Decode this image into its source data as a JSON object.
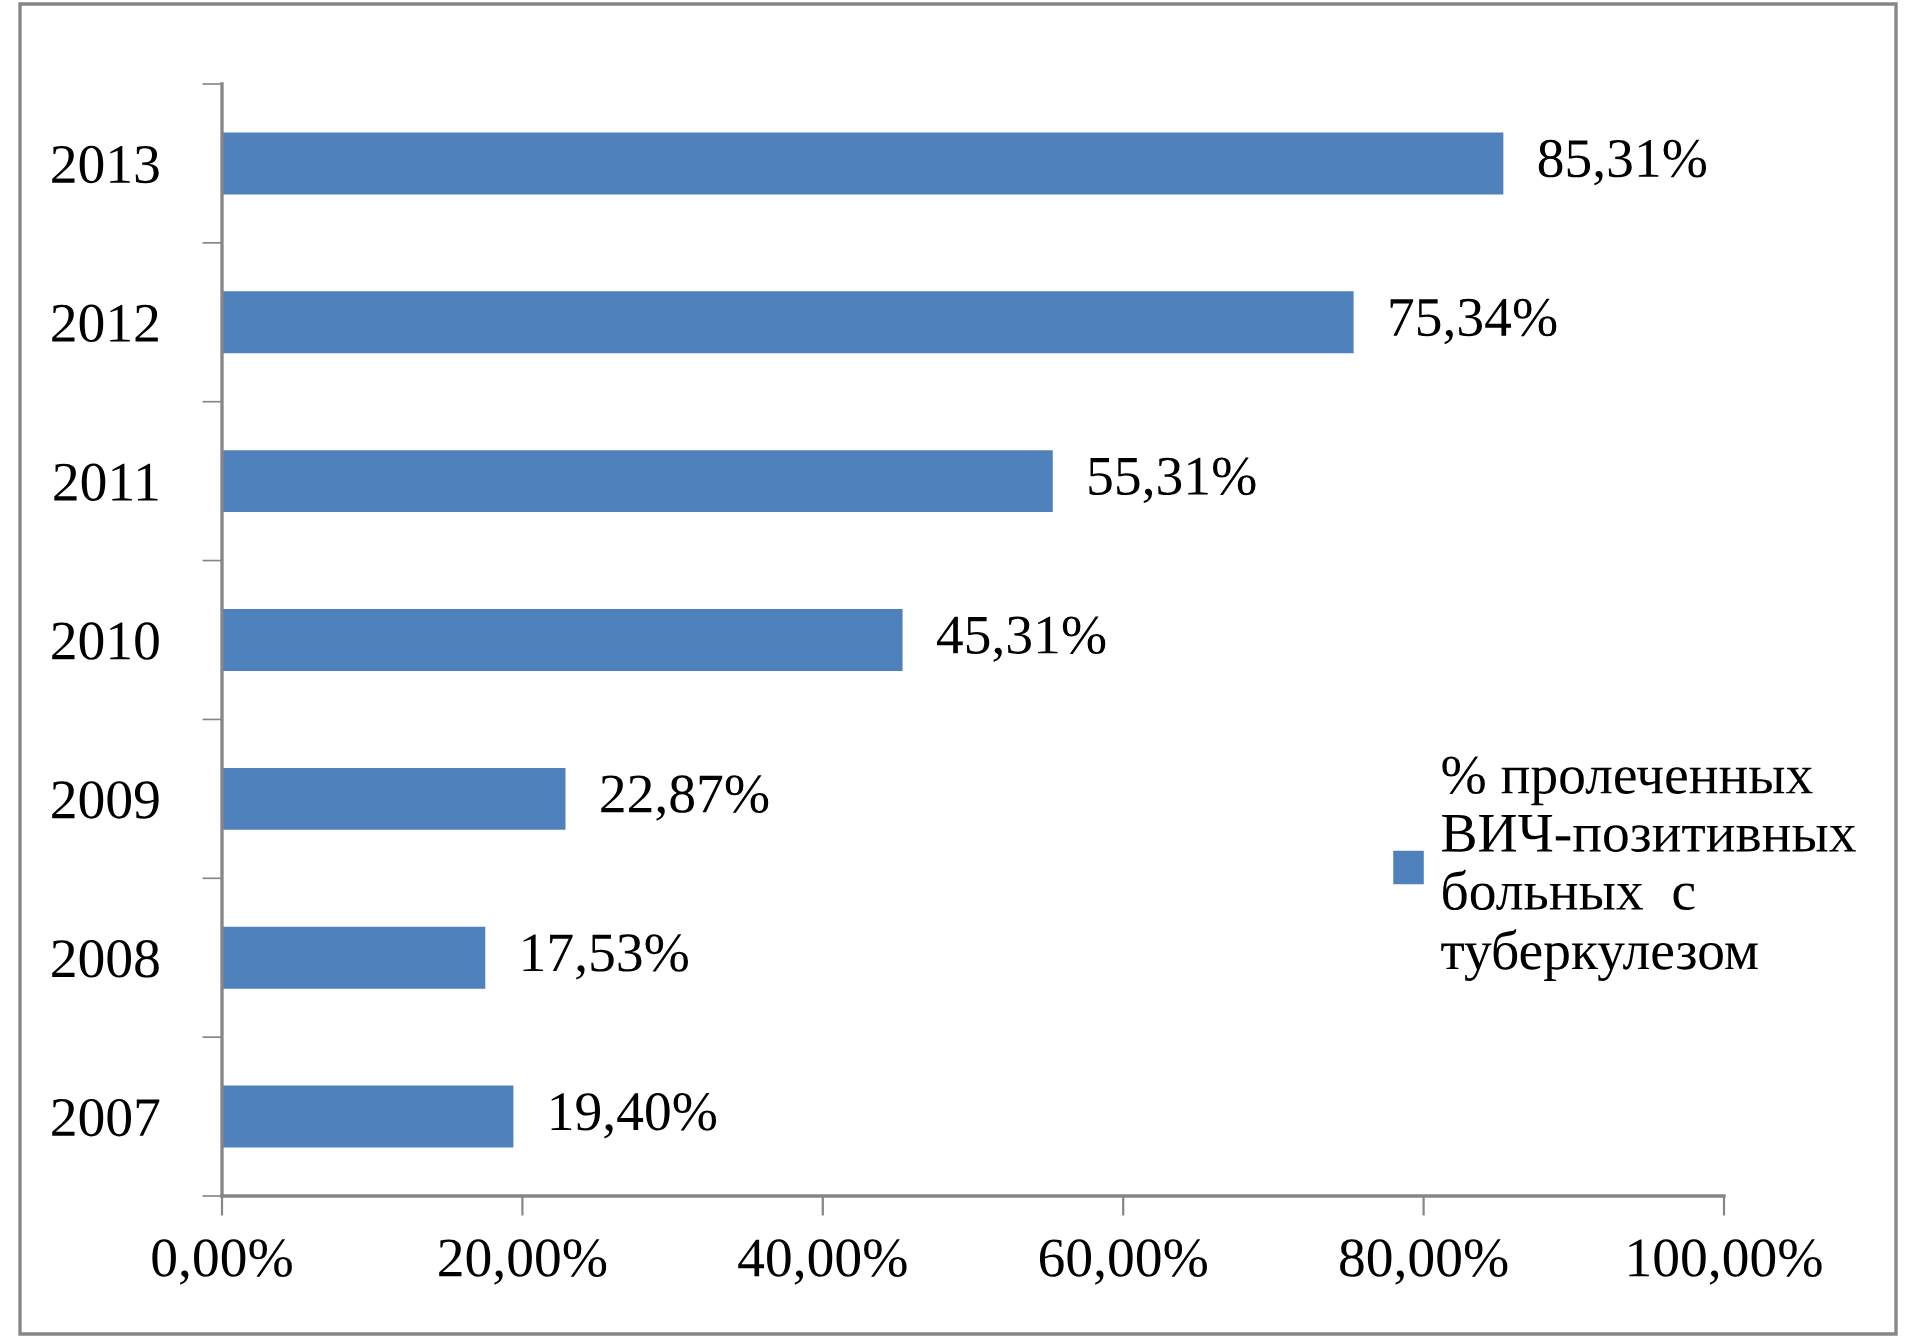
{
  "chart_data": {
    "type": "bar",
    "orientation": "horizontal",
    "categories": [
      "2013",
      "2012",
      "2011",
      "2010",
      "2009",
      "2008",
      "2007"
    ],
    "series": [
      {
        "name": "% пролеченных\nВИЧ-позитивных\nбольных  с\nтуберкулезом",
        "color": "#4f81bd",
        "values": [
          85.31,
          75.34,
          55.31,
          45.31,
          22.87,
          17.53,
          19.4
        ],
        "value_labels": [
          "85,31%",
          "75,34%",
          "55,31%",
          "45,31%",
          "22,87%",
          "17,53%",
          "19,40%"
        ]
      }
    ],
    "xlim": [
      0,
      100
    ],
    "xticks": [
      {
        "value": 0,
        "label": "0,00%"
      },
      {
        "value": 20,
        "label": "20,00%"
      },
      {
        "value": 40,
        "label": "40,00%"
      },
      {
        "value": 60,
        "label": "60,00%"
      },
      {
        "value": 80,
        "label": "80,00%"
      },
      {
        "value": 100,
        "label": "100,00%"
      }
    ],
    "grid": false,
    "legend": "right"
  }
}
